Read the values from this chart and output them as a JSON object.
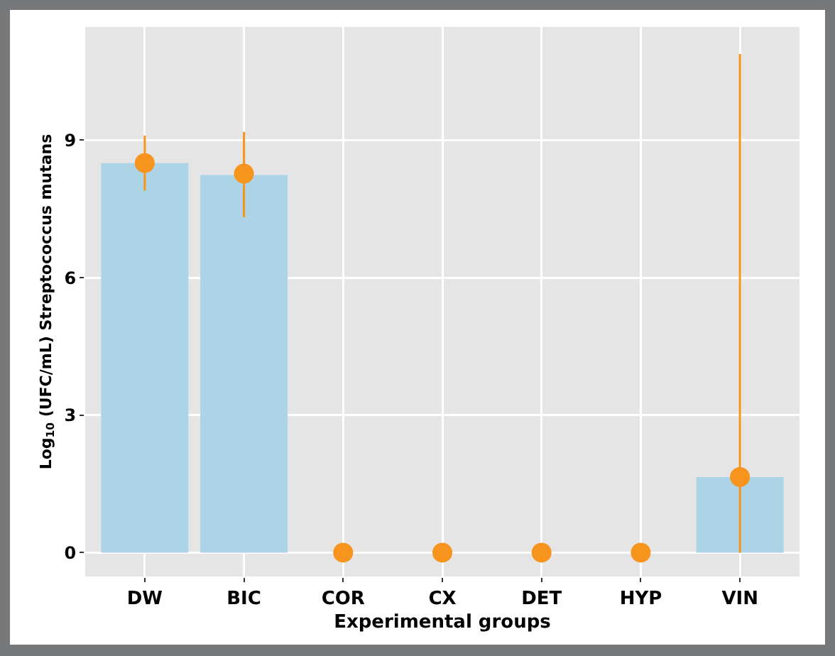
{
  "chart_data": {
    "type": "bar",
    "xlabel": "Experimental groups",
    "ylabel": "Log$_{10}$ (UFC/mL) Streptococcus mutans",
    "categories": [
      "DW",
      "BIC",
      "COR",
      "CX",
      "DET",
      "HYP",
      "VIN"
    ],
    "series": [
      {
        "color": "#add4e6",
        "values": [
          8.5,
          8.24,
          0,
          0,
          0,
          0,
          1.65
        ]
      },
      {
        "type": "scatter",
        "color": "#f7941d",
        "values": [
          8.5,
          8.27,
          0,
          0,
          0,
          0,
          1.65
        ],
        "errors": [
          [
            7.9,
            9.1
          ],
          [
            7.32,
            9.18
          ],
          null,
          null,
          null,
          null,
          [
            0,
            10.88
          ]
        ]
      }
    ],
    "ylim": [
      -0.52,
      11.47
    ],
    "yticks": [
      0,
      3,
      6,
      9
    ],
    "grid": true,
    "marker": "circle"
  }
}
